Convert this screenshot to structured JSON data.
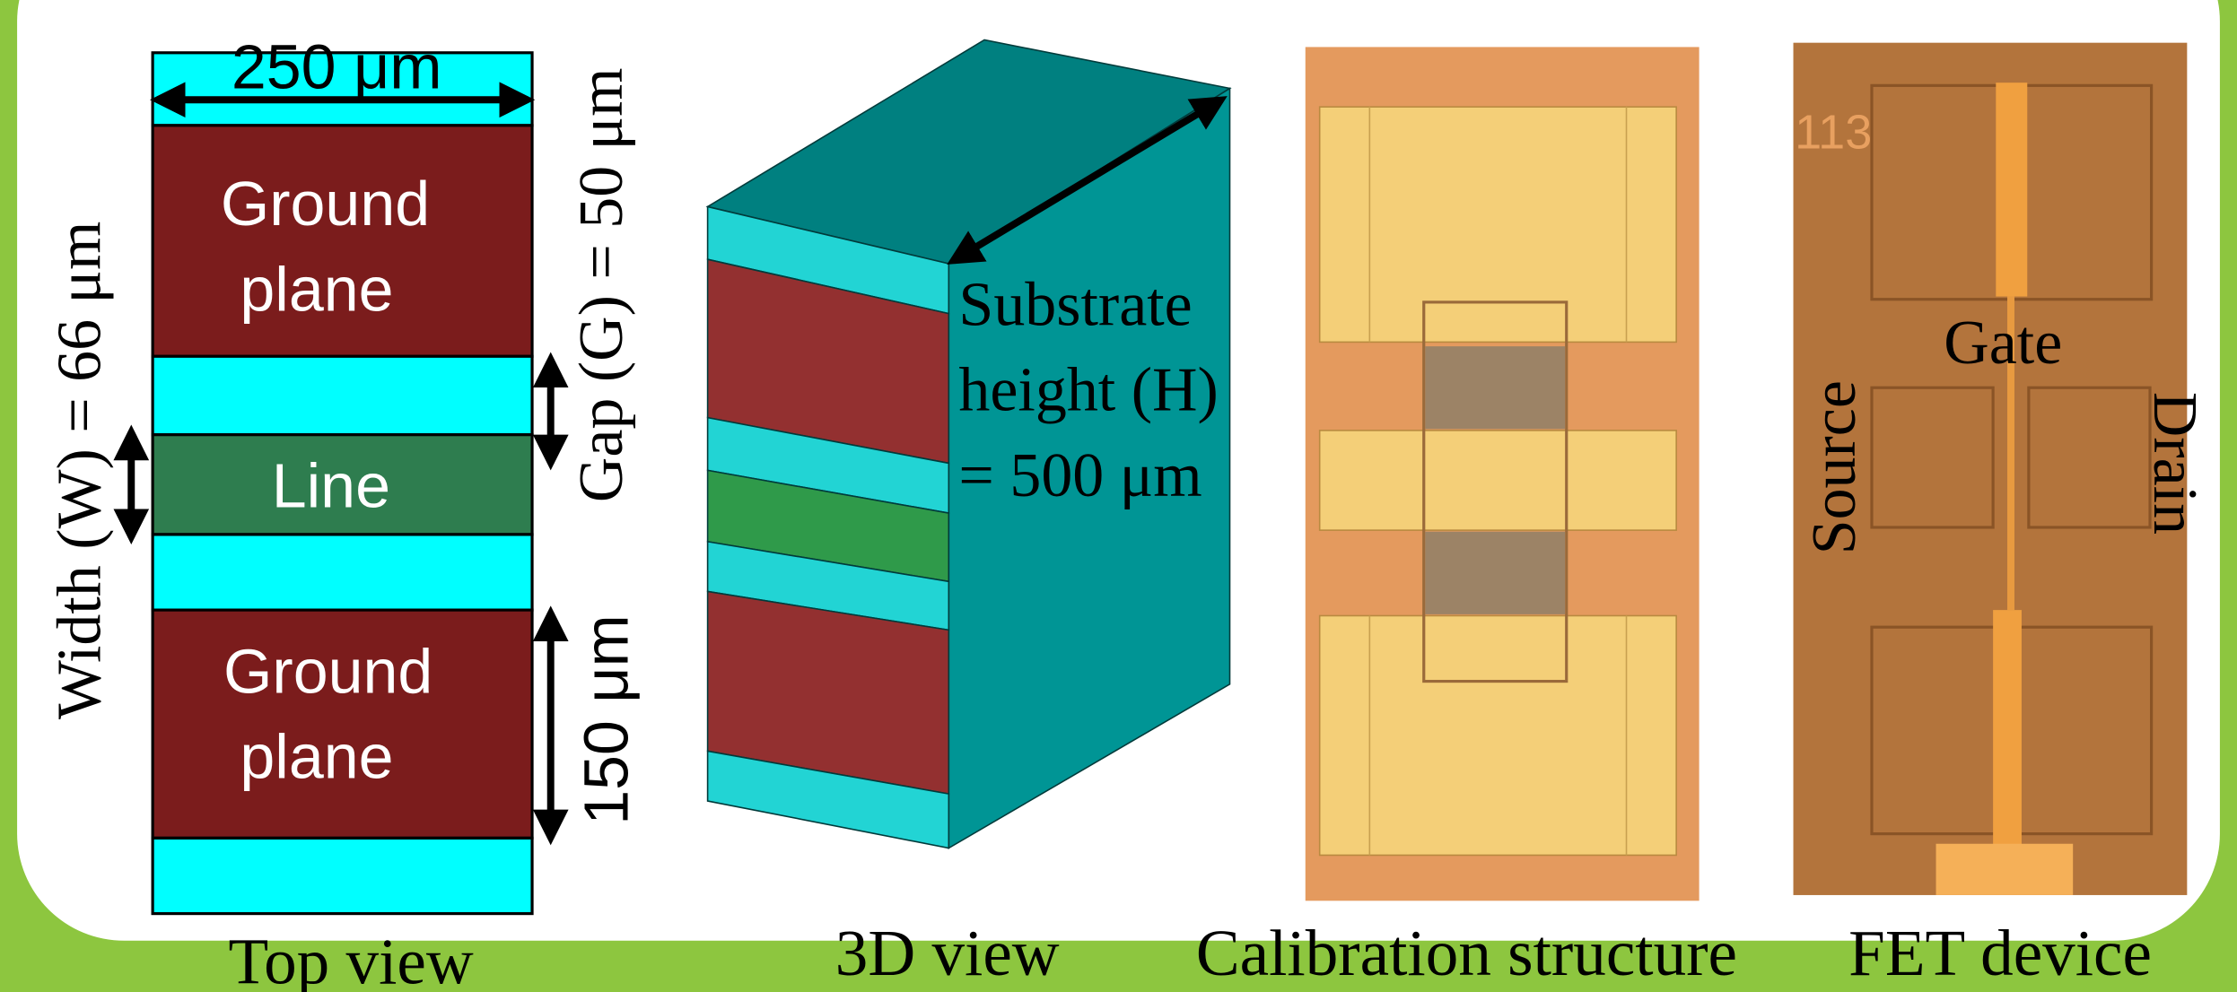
{
  "top_view": {
    "width_label": "250  μm",
    "ground_top": [
      "Ground",
      "plane"
    ],
    "line": "Line",
    "ground_bottom": [
      "Ground",
      "plane"
    ],
    "gap": "Gap (G) = 50 μm",
    "width": "Width (W) = 66 μm",
    "ground_height": "150 μm",
    "caption": "Top view"
  },
  "view_3d": {
    "substrate": [
      "Substrate",
      "height (H)",
      "= 500 μm"
    ],
    "caption": "3D view"
  },
  "calibration": {
    "caption": "Calibration structure"
  },
  "fet": {
    "label_113": "113",
    "gate": "Gate",
    "source": "Source",
    "drain": "Drain",
    "caption": "FET device"
  }
}
